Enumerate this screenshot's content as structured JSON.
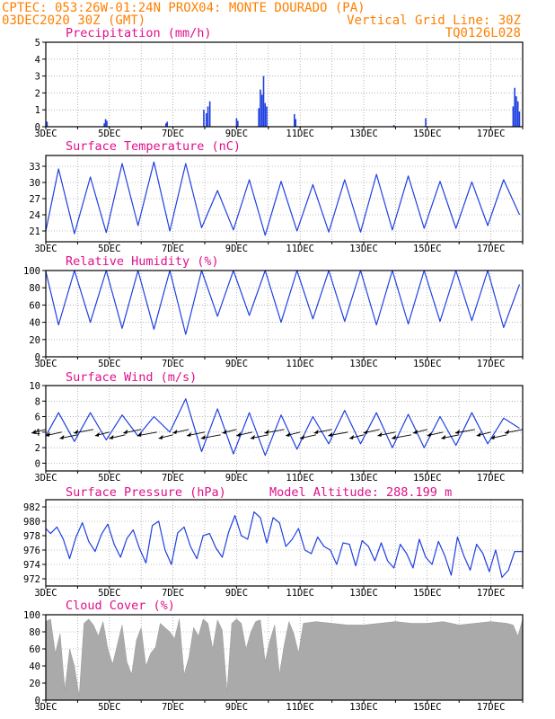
{
  "header": {
    "line1": "CPTEC:  053:26W-01:24N  PROX04: MONTE DOURADO (PA)",
    "date": "03DEC2020 30Z (GMT)",
    "grid_note": "Vertical Grid Line: 30Z",
    "model_code": "TQ0126L028"
  },
  "colors": {
    "header": "#ff7f00",
    "title": "#e0108a",
    "series": "#1f3fe0",
    "cloud": "#aaaaaa"
  },
  "x_tick_labels": [
    "3DEC",
    "5DEC",
    "7DEC",
    "9DEC",
    "11DEC",
    "13DEC",
    "15DEC",
    "17DEC"
  ],
  "x_tick_days": [
    0,
    2,
    4,
    6,
    8,
    10,
    12,
    14
  ],
  "chart_data": [
    {
      "id": "precip",
      "type": "bar",
      "title": "Precipitation (mm/h)",
      "ylim": [
        0,
        5
      ],
      "yticks": [
        0,
        1,
        2,
        3,
        4,
        5
      ],
      "events": [
        {
          "x": 0.04,
          "y": 0.3
        },
        {
          "x": 1.84,
          "y": 0.2
        },
        {
          "x": 1.88,
          "y": 0.45
        },
        {
          "x": 1.92,
          "y": 0.35
        },
        {
          "x": 3.78,
          "y": 0.2
        },
        {
          "x": 3.82,
          "y": 0.3
        },
        {
          "x": 4.97,
          "y": 1.0
        },
        {
          "x": 5.05,
          "y": 0.8
        },
        {
          "x": 5.1,
          "y": 1.2
        },
        {
          "x": 5.16,
          "y": 1.5
        },
        {
          "x": 6.0,
          "y": 0.5
        },
        {
          "x": 6.04,
          "y": 0.35
        },
        {
          "x": 6.7,
          "y": 1.1
        },
        {
          "x": 6.75,
          "y": 2.2
        },
        {
          "x": 6.8,
          "y": 1.9
        },
        {
          "x": 6.85,
          "y": 3.0
        },
        {
          "x": 6.9,
          "y": 1.4
        },
        {
          "x": 6.95,
          "y": 1.2
        },
        {
          "x": 7.82,
          "y": 0.75
        },
        {
          "x": 7.86,
          "y": 0.45
        },
        {
          "x": 10.95,
          "y": 0.1
        },
        {
          "x": 11.95,
          "y": 0.5
        },
        {
          "x": 14.7,
          "y": 1.2
        },
        {
          "x": 14.75,
          "y": 2.3
        },
        {
          "x": 14.8,
          "y": 1.8
        },
        {
          "x": 14.85,
          "y": 1.5
        },
        {
          "x": 14.9,
          "y": 0.9
        }
      ]
    },
    {
      "id": "temp",
      "type": "line",
      "title": "Surface Temperature (nC)",
      "ylim": [
        19,
        35
      ],
      "yticks": [
        21,
        24,
        27,
        30,
        33
      ],
      "daily_max_x": 0.4,
      "daily_min_x": 0.9,
      "initial": 21.0,
      "daily_max": [
        32.5,
        31.0,
        33.5,
        33.8,
        33.5,
        28.5,
        30.5,
        30.2,
        29.6,
        30.5,
        31.5,
        31.2,
        30.2,
        30.1,
        30.5
      ],
      "daily_min": [
        20.5,
        20.7,
        22.0,
        21.0,
        21.6,
        21.2,
        20.2,
        21.0,
        20.8,
        20.8,
        21.2,
        21.5,
        21.5,
        22.0,
        24.0
      ]
    },
    {
      "id": "rh",
      "type": "line",
      "title": "Relative Humidity (%)",
      "ylim": [
        0,
        100
      ],
      "yticks": [
        0,
        20,
        40,
        60,
        80,
        100
      ],
      "daily_min_x": 0.4,
      "daily_max_x": 0.9,
      "initial": 99,
      "daily_min": [
        37,
        40,
        33,
        32,
        26,
        47,
        48,
        40,
        44,
        41,
        37,
        38,
        41,
        42,
        34
      ],
      "daily_max": [
        100,
        100,
        100,
        100,
        100,
        100,
        100,
        100,
        100,
        100,
        100,
        100,
        100,
        100,
        84
      ]
    },
    {
      "id": "wind",
      "type": "line",
      "title": "Surface Wind (m/s)",
      "ylim": [
        -1,
        10
      ],
      "yticks": [
        0,
        2,
        4,
        6,
        8,
        10
      ],
      "daily_max_x": 0.4,
      "daily_min_x": 0.9,
      "initial": 3.5,
      "daily_max": [
        6.5,
        6.5,
        6.2,
        6.0,
        8.3,
        7.0,
        6.5,
        6.2,
        6.0,
        6.8,
        6.5,
        6.3,
        6.0,
        6.5,
        5.8
      ],
      "daily_min": [
        2.8,
        3.0,
        3.5,
        4.0,
        1.5,
        1.2,
        1.0,
        1.8,
        2.5,
        2.5,
        2.0,
        2.0,
        2.3,
        2.5,
        4.5
      ],
      "arrows_every_days": 0.5,
      "arrow_y": 4.0,
      "arrow_direction": "from-east"
    },
    {
      "id": "pres",
      "type": "line",
      "title": "Surface Pressure (hPa)",
      "subtitle": "Model Altitude: 288.199 m",
      "ylim": [
        971,
        983
      ],
      "yticks": [
        972,
        974,
        976,
        978,
        980,
        982
      ],
      "x": [
        0,
        0.15,
        0.35,
        0.55,
        0.75,
        0.95,
        1.15,
        1.35,
        1.55,
        1.75,
        1.95,
        2.15,
        2.35,
        2.55,
        2.75,
        2.95,
        3.15,
        3.35,
        3.55,
        3.75,
        3.95,
        4.15,
        4.35,
        4.55,
        4.75,
        4.95,
        5.15,
        5.35,
        5.55,
        5.75,
        5.95,
        6.15,
        6.35,
        6.55,
        6.75,
        6.95,
        7.15,
        7.35,
        7.55,
        7.75,
        7.95,
        8.15,
        8.35,
        8.55,
        8.75,
        8.95,
        9.15,
        9.35,
        9.55,
        9.75,
        9.95,
        10.15,
        10.35,
        10.55,
        10.75,
        10.95,
        11.15,
        11.35,
        11.55,
        11.75,
        11.95,
        12.15,
        12.35,
        12.55,
        12.75,
        12.95,
        13.15,
        13.35,
        13.55,
        13.75,
        13.95,
        14.15,
        14.35,
        14.55,
        14.75,
        15.0
      ],
      "y": [
        979.0,
        978.3,
        979.2,
        977.5,
        974.8,
        977.8,
        979.8,
        977.2,
        975.8,
        978.2,
        979.6,
        976.8,
        975.0,
        977.6,
        978.8,
        976.2,
        974.2,
        979.4,
        980.0,
        976.0,
        974.0,
        978.4,
        979.2,
        976.5,
        974.8,
        978.0,
        978.3,
        976.3,
        975.0,
        978.5,
        980.8,
        978.0,
        977.5,
        981.3,
        980.5,
        977.0,
        980.5,
        979.8,
        976.5,
        977.5,
        979.0,
        976.0,
        975.5,
        977.8,
        976.5,
        976.0,
        974.0,
        977.0,
        976.8,
        973.8,
        977.3,
        976.5,
        974.5,
        977.0,
        974.5,
        973.5,
        976.8,
        975.5,
        973.5,
        977.5,
        975.0,
        974.0,
        977.2,
        975.2,
        972.5,
        977.8,
        975.2,
        973.2,
        976.8,
        975.5,
        973.0,
        976.0,
        972.2,
        973.2,
        975.8,
        975.8
      ]
    },
    {
      "id": "cloud",
      "type": "area",
      "title": "Cloud Cover (%)",
      "ylim": [
        0,
        100
      ],
      "yticks": [
        0,
        20,
        40,
        60,
        80,
        100
      ],
      "x": [
        0,
        0.15,
        0.3,
        0.45,
        0.6,
        0.75,
        0.9,
        1.05,
        1.2,
        1.35,
        1.5,
        1.65,
        1.8,
        1.95,
        2.1,
        2.25,
        2.4,
        2.55,
        2.7,
        2.85,
        3.0,
        3.15,
        3.3,
        3.45,
        3.6,
        3.75,
        3.9,
        4.05,
        4.2,
        4.35,
        4.5,
        4.65,
        4.8,
        4.95,
        5.1,
        5.25,
        5.4,
        5.55,
        5.7,
        5.85,
        6.0,
        6.15,
        6.3,
        6.45,
        6.6,
        6.75,
        6.9,
        7.05,
        7.2,
        7.35,
        7.5,
        7.65,
        7.8,
        7.95,
        8.1,
        8.5,
        9.0,
        9.5,
        10.0,
        10.5,
        11.0,
        11.5,
        12.0,
        12.5,
        13.0,
        13.5,
        14.0,
        14.5,
        14.7,
        14.85,
        15.0
      ],
      "y": [
        92,
        95,
        55,
        78,
        12,
        60,
        40,
        5,
        90,
        95,
        88,
        75,
        92,
        60,
        42,
        65,
        88,
        45,
        30,
        70,
        85,
        40,
        55,
        62,
        90,
        85,
        80,
        72,
        95,
        30,
        50,
        85,
        75,
        95,
        90,
        60,
        94,
        82,
        10,
        90,
        95,
        90,
        60,
        80,
        92,
        94,
        45,
        70,
        88,
        30,
        65,
        92,
        78,
        55,
        90,
        92,
        90,
        88,
        88,
        90,
        92,
        90,
        90,
        92,
        88,
        90,
        92,
        90,
        88,
        75,
        95
      ]
    }
  ]
}
